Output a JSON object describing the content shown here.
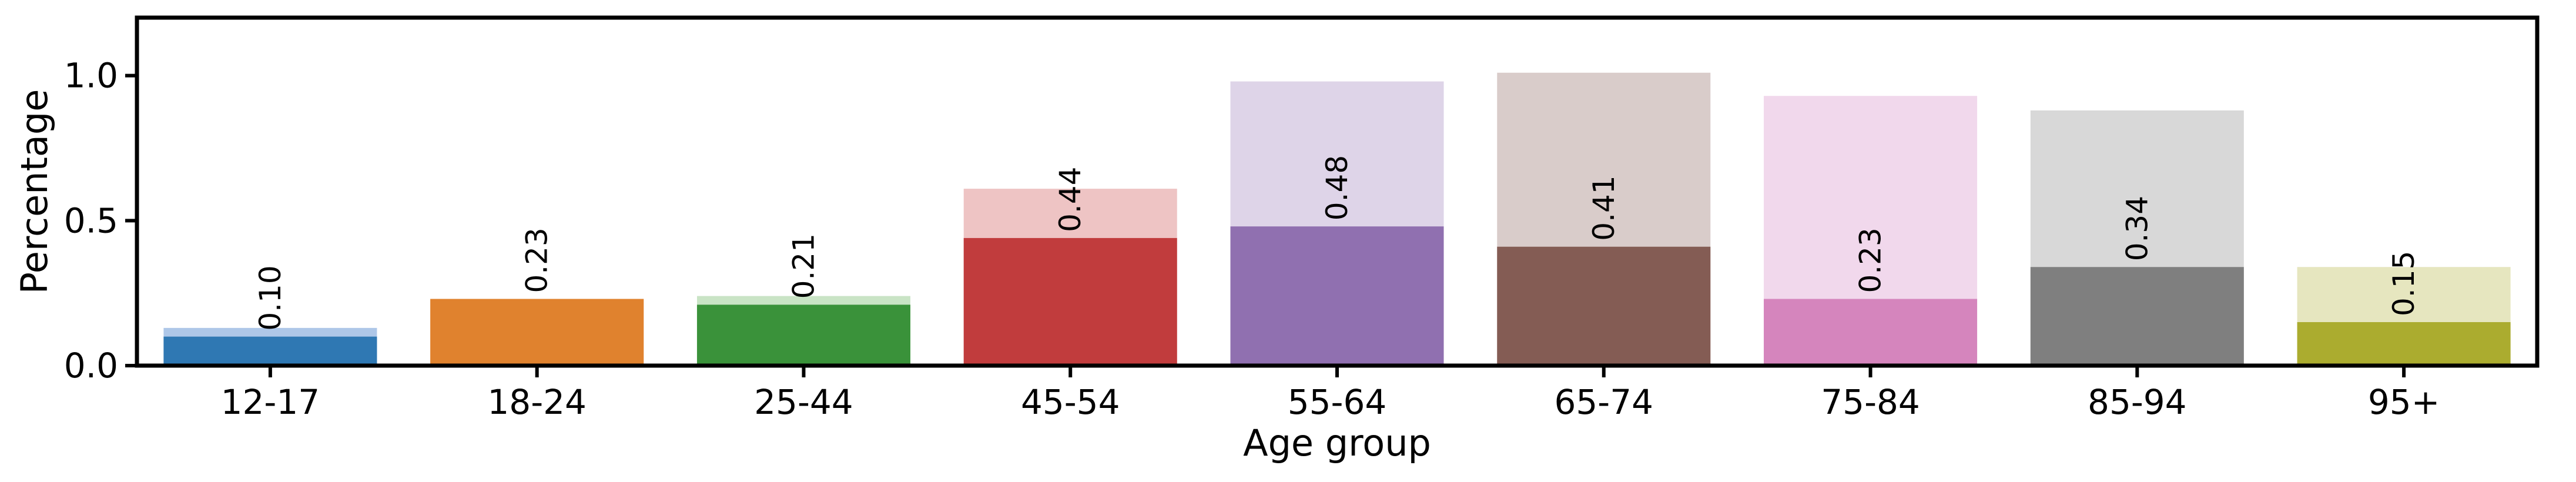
{
  "chart_data": {
    "type": "bar",
    "xlabel": "Age group",
    "ylabel": "Percentage",
    "ylim": [
      0,
      1.2
    ],
    "yticks": [
      0.0,
      0.5,
      1.0
    ],
    "ytick_labels": [
      "0.0",
      "0.5",
      "1.0"
    ],
    "grid": false,
    "legend": "none",
    "categories": [
      "12-17",
      "18-24",
      "25-44",
      "45-54",
      "55-64",
      "65-74",
      "75-84",
      "85-94",
      "95+"
    ],
    "series": [
      {
        "values": [
          0.13,
          0.23,
          0.24,
          0.61,
          0.98,
          1.01,
          0.93,
          0.88,
          0.34
        ],
        "colors": [
          "#aec7e8",
          "#ffbb78",
          "#c9e4c5",
          "#eec4c4",
          "#ded4e8",
          "#d9ccca",
          "#f1d8ec",
          "#d8d8d8",
          "#e6e6bf"
        ]
      },
      {
        "values": [
          0.1,
          0.23,
          0.21,
          0.44,
          0.48,
          0.41,
          0.23,
          0.34,
          0.15
        ],
        "labels": [
          "0.10",
          "0.23",
          "0.21",
          "0.44",
          "0.48",
          "0.41",
          "0.23",
          "0.34",
          "0.15"
        ],
        "colors": [
          "#2f78b3",
          "#e0822e",
          "#3a923a",
          "#c13c3d",
          "#9070b0",
          "#845c54",
          "#d585bd",
          "#7f7f7f",
          "#abac2f"
        ]
      }
    ]
  }
}
